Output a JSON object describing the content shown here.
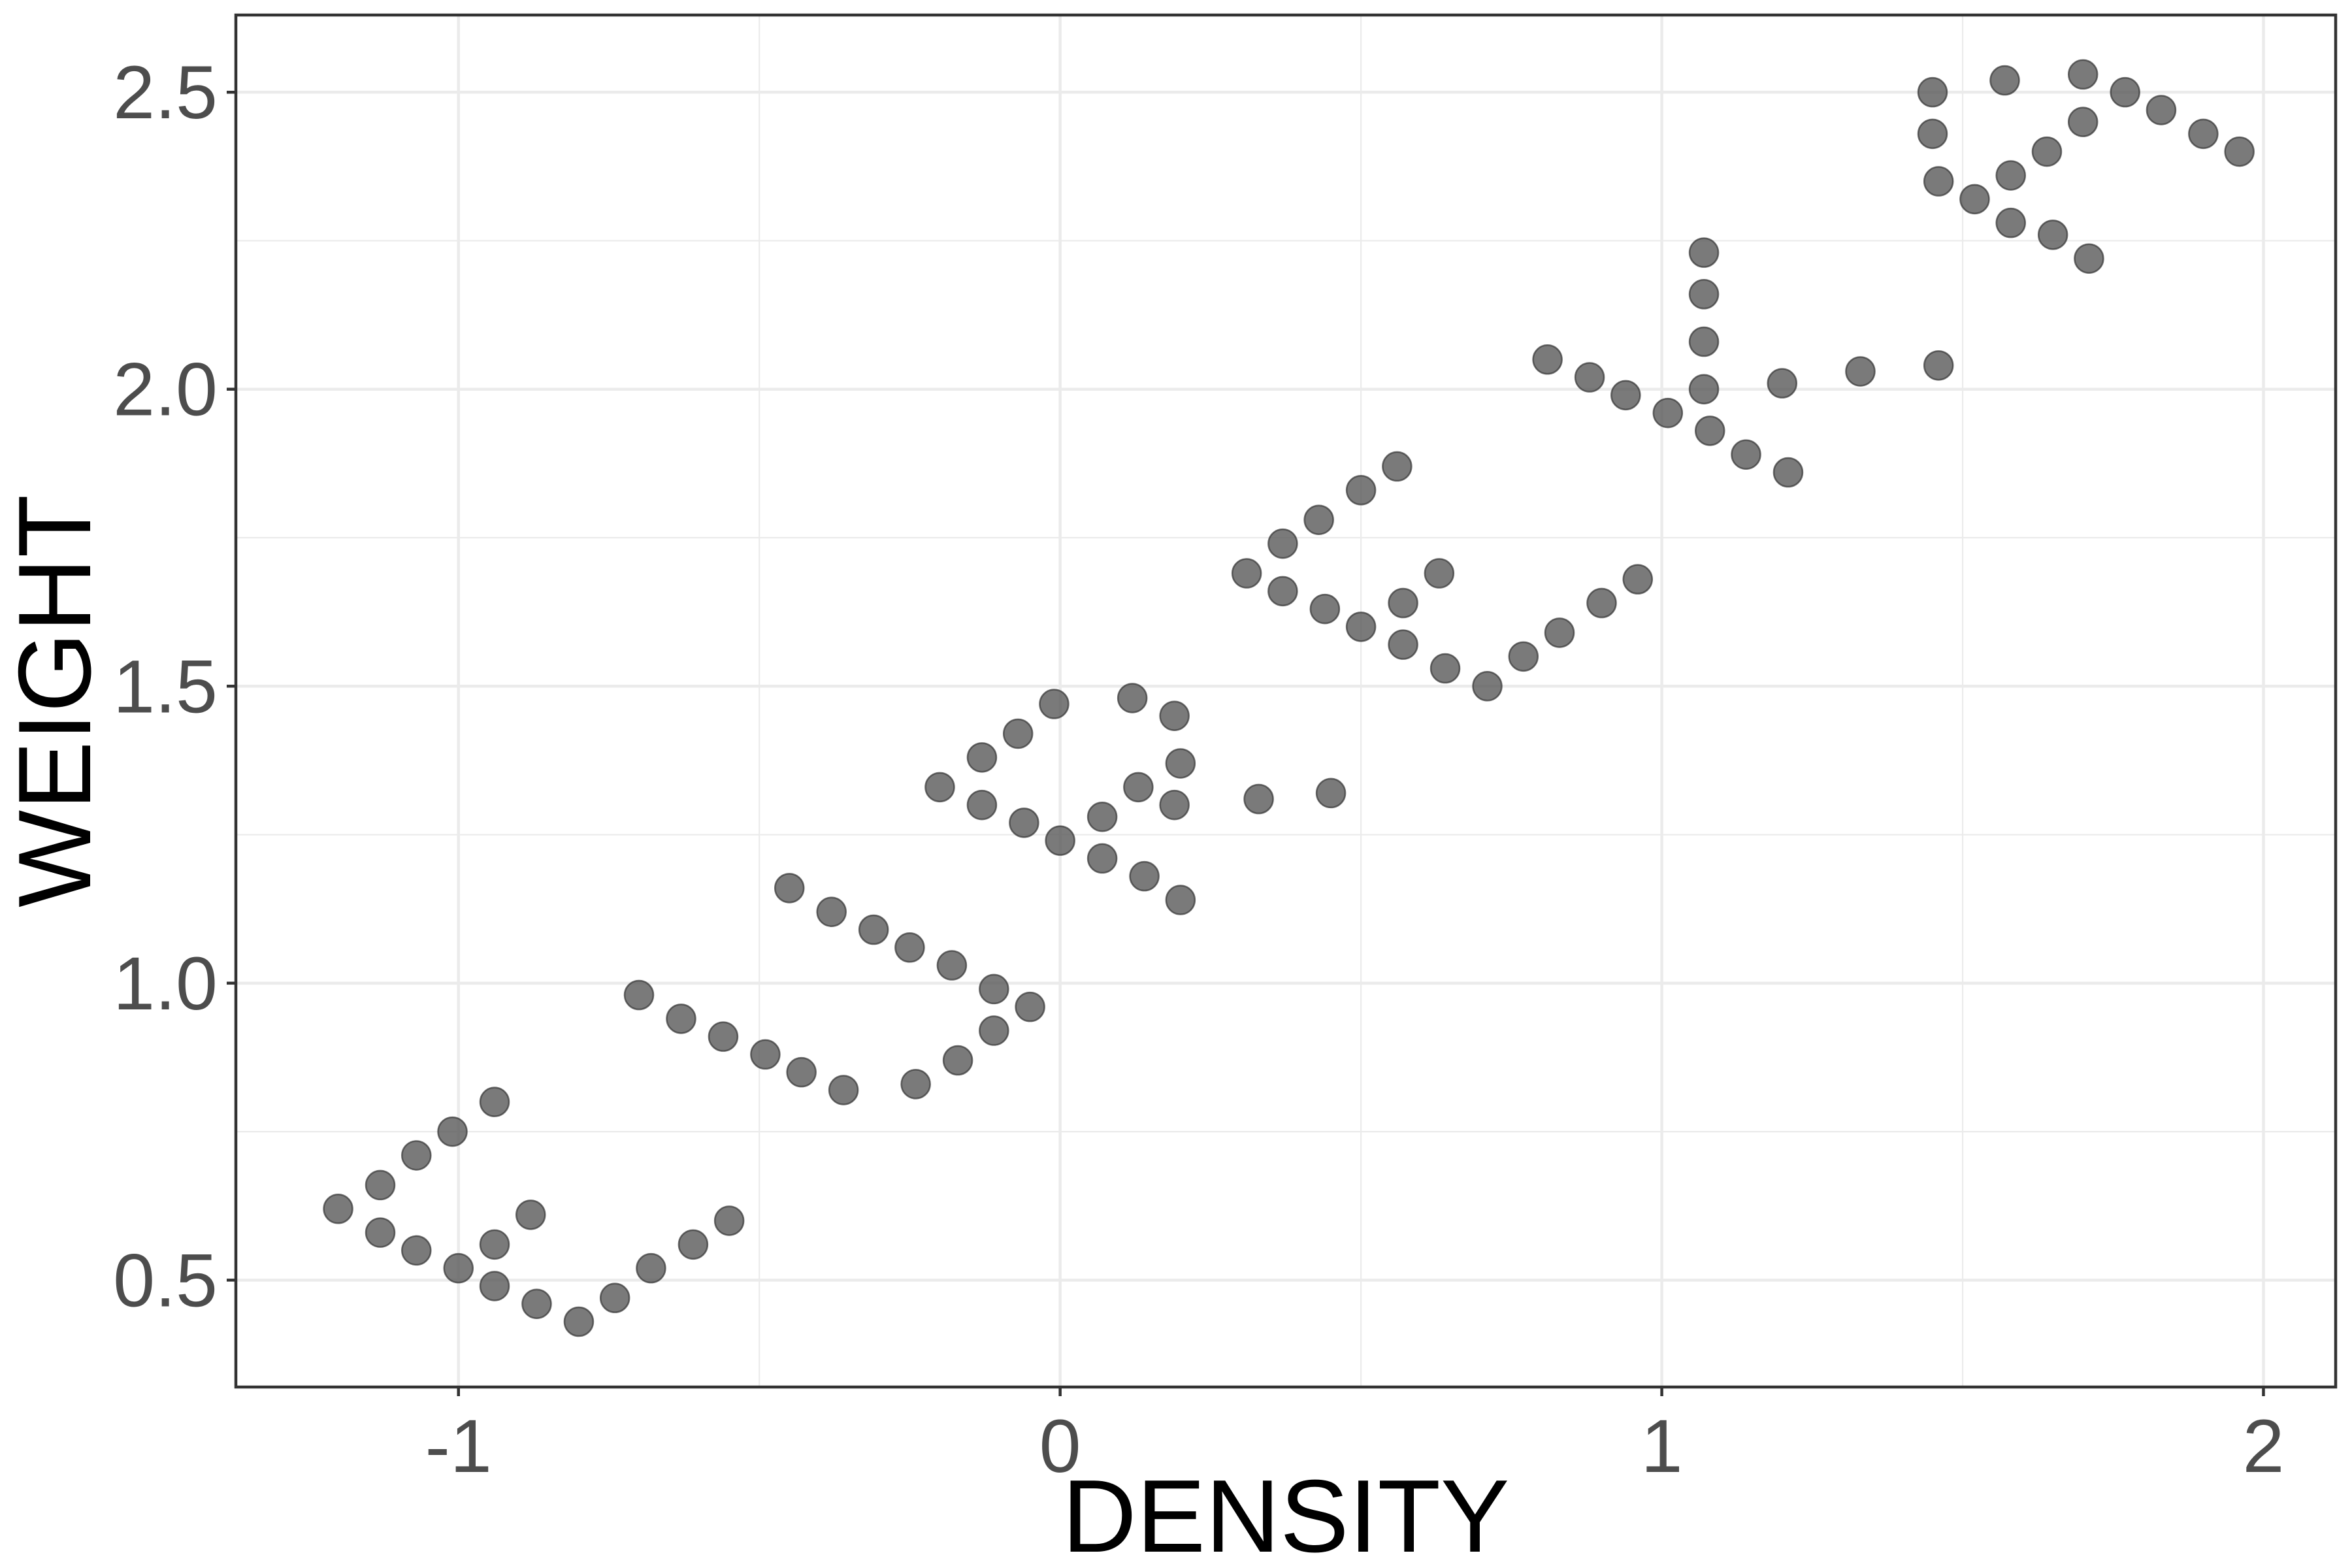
{
  "chart_data": {
    "type": "scatter",
    "xlabel": "DENSITY",
    "ylabel": "WEIGHT",
    "xlim": [
      -1.37,
      2.12
    ],
    "ylim": [
      0.32,
      2.63
    ],
    "xticks": [
      -1,
      0,
      1,
      2
    ],
    "xtick_labels": [
      "-1",
      "0",
      "1",
      "2"
    ],
    "yticks": [
      0.5,
      1.0,
      1.5,
      2.0,
      2.5
    ],
    "ytick_labels": [
      "0.5",
      "1.0",
      "1.5",
      "2.0",
      "2.5"
    ],
    "grid": true,
    "legend": "none",
    "point_color": "#595959",
    "points": [
      [
        -1.2,
        0.62
      ],
      [
        -1.13,
        0.66
      ],
      [
        -1.07,
        0.71
      ],
      [
        -1.01,
        0.75
      ],
      [
        -0.94,
        0.8
      ],
      [
        -1.13,
        0.58
      ],
      [
        -1.07,
        0.55
      ],
      [
        -1.0,
        0.52
      ],
      [
        -0.94,
        0.49
      ],
      [
        -0.87,
        0.46
      ],
      [
        -0.8,
        0.43
      ],
      [
        -0.74,
        0.47
      ],
      [
        -0.68,
        0.52
      ],
      [
        -0.61,
        0.56
      ],
      [
        -0.55,
        0.6
      ],
      [
        -0.94,
        0.56
      ],
      [
        -0.88,
        0.61
      ],
      [
        -0.7,
        0.98
      ],
      [
        -0.63,
        0.94
      ],
      [
        -0.56,
        0.91
      ],
      [
        -0.49,
        0.88
      ],
      [
        -0.43,
        0.85
      ],
      [
        -0.36,
        0.82
      ],
      [
        -0.24,
        0.83
      ],
      [
        -0.17,
        0.87
      ],
      [
        -0.11,
        0.92
      ],
      [
        -0.05,
        0.96
      ],
      [
        -0.45,
        1.16
      ],
      [
        -0.38,
        1.12
      ],
      [
        -0.31,
        1.09
      ],
      [
        -0.25,
        1.06
      ],
      [
        -0.18,
        1.03
      ],
      [
        -0.11,
        0.99
      ],
      [
        -0.2,
        1.33
      ],
      [
        -0.13,
        1.38
      ],
      [
        -0.07,
        1.42
      ],
      [
        -0.01,
        1.47
      ],
      [
        -0.13,
        1.3
      ],
      [
        -0.06,
        1.27
      ],
      [
        0.0,
        1.24
      ],
      [
        0.07,
        1.21
      ],
      [
        0.14,
        1.18
      ],
      [
        0.2,
        1.14
      ],
      [
        0.07,
        1.28
      ],
      [
        0.13,
        1.33
      ],
      [
        0.2,
        1.37
      ],
      [
        0.12,
        1.48
      ],
      [
        0.19,
        1.45
      ],
      [
        0.19,
        1.3
      ],
      [
        0.31,
        1.69
      ],
      [
        0.37,
        1.74
      ],
      [
        0.43,
        1.78
      ],
      [
        0.5,
        1.83
      ],
      [
        0.56,
        1.87
      ],
      [
        0.37,
        1.66
      ],
      [
        0.44,
        1.63
      ],
      [
        0.5,
        1.6
      ],
      [
        0.57,
        1.57
      ],
      [
        0.64,
        1.53
      ],
      [
        0.71,
        1.5
      ],
      [
        0.77,
        1.55
      ],
      [
        0.83,
        1.59
      ],
      [
        0.9,
        1.64
      ],
      [
        0.96,
        1.68
      ],
      [
        0.57,
        1.64
      ],
      [
        0.63,
        1.69
      ],
      [
        0.33,
        1.31
      ],
      [
        0.45,
        1.32
      ],
      [
        0.81,
        2.05
      ],
      [
        0.88,
        2.02
      ],
      [
        0.94,
        1.99
      ],
      [
        1.01,
        1.96
      ],
      [
        1.08,
        1.93
      ],
      [
        1.14,
        1.89
      ],
      [
        1.21,
        1.86
      ],
      [
        1.07,
        2.23
      ],
      [
        1.07,
        2.16
      ],
      [
        1.07,
        2.08
      ],
      [
        1.07,
        2.0
      ],
      [
        1.2,
        2.01
      ],
      [
        1.33,
        2.03
      ],
      [
        1.46,
        2.04
      ],
      [
        1.45,
        2.5
      ],
      [
        1.45,
        2.43
      ],
      [
        1.46,
        2.35
      ],
      [
        1.52,
        2.32
      ],
      [
        1.58,
        2.28
      ],
      [
        1.65,
        2.26
      ],
      [
        1.71,
        2.22
      ],
      [
        1.57,
        2.52
      ],
      [
        1.7,
        2.53
      ],
      [
        1.77,
        2.5
      ],
      [
        1.83,
        2.47
      ],
      [
        1.9,
        2.43
      ],
      [
        1.96,
        2.4
      ],
      [
        1.7,
        2.45
      ],
      [
        1.64,
        2.4
      ],
      [
        1.58,
        2.36
      ]
    ]
  }
}
